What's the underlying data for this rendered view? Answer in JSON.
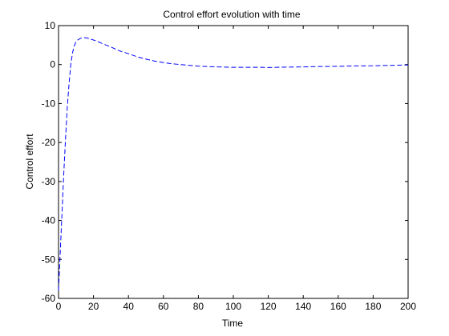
{
  "chart_data": {
    "type": "line",
    "title": "Control effort evolution with time",
    "xlabel": "Time",
    "ylabel": "Control effort",
    "xlim": [
      0,
      200
    ],
    "ylim": [
      -60,
      10
    ],
    "xticks": [
      0,
      20,
      40,
      60,
      80,
      100,
      120,
      140,
      160,
      180,
      200
    ],
    "yticks": [
      -60,
      -50,
      -40,
      -30,
      -20,
      -10,
      0,
      10
    ],
    "grid": false,
    "legend": "none",
    "series": [
      {
        "line_style": "dashed",
        "color": "#0000ff",
        "x": [
          0,
          1,
          2,
          3,
          4,
          5,
          6,
          7,
          8,
          9,
          10,
          11,
          12,
          13,
          14,
          15,
          16,
          18,
          20,
          22,
          25,
          30,
          35,
          40,
          45,
          50,
          55,
          60,
          65,
          70,
          75,
          80,
          85,
          90,
          95,
          100,
          105,
          110,
          115,
          120,
          125,
          130,
          140,
          150,
          160,
          170,
          180,
          190,
          200
        ],
        "y": [
          -58,
          -48,
          -38,
          -28,
          -19,
          -11,
          -5,
          0,
          3,
          4.8,
          5.8,
          6.3,
          6.6,
          6.8,
          6.9,
          6.9,
          6.85,
          6.6,
          6.3,
          6.0,
          5.4,
          4.5,
          3.5,
          2.8,
          2.0,
          1.4,
          0.9,
          0.5,
          0.2,
          0.0,
          -0.2,
          -0.4,
          -0.5,
          -0.6,
          -0.65,
          -0.7,
          -0.7,
          -0.7,
          -0.7,
          -0.75,
          -0.7,
          -0.65,
          -0.6,
          -0.5,
          -0.45,
          -0.35,
          -0.3,
          -0.2,
          -0.1
        ]
      }
    ]
  }
}
